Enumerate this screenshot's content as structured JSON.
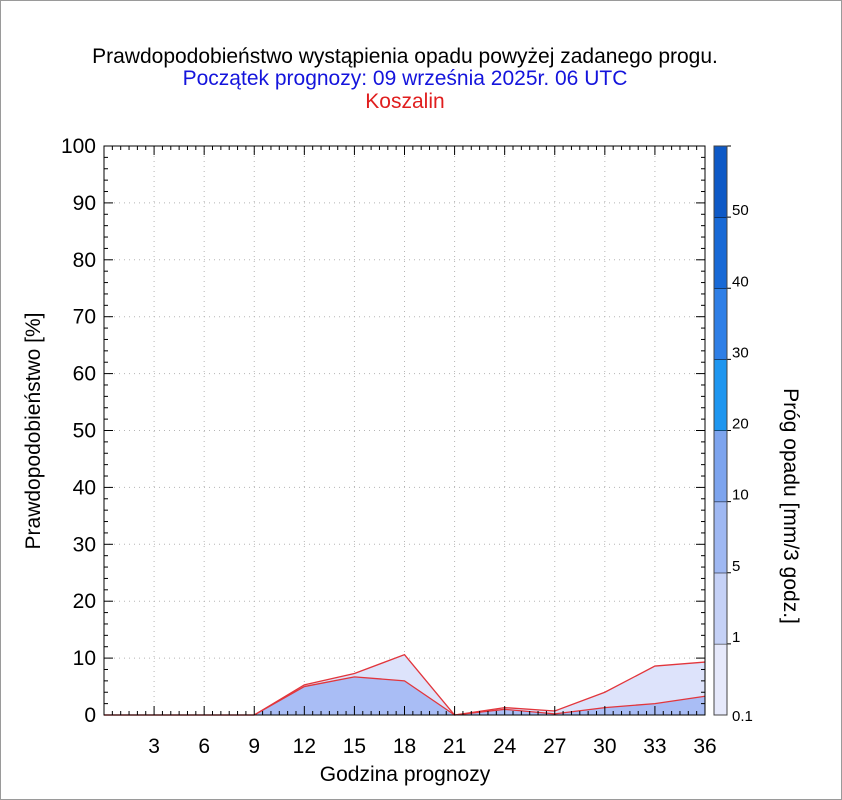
{
  "chart_data": {
    "type": "area",
    "title": "Prawdopodobieństwo wystąpienia opadu powyżej zadanego progu.",
    "subtitle": "Początek prognozy: 09 września 2025r. 06 UTC",
    "location": "Koszalin",
    "xlabel": "Godzina prognozy",
    "ylabel": "Prawdopodobieństwo [%]",
    "xlim": [
      0,
      36
    ],
    "ylim": [
      0,
      100
    ],
    "x": [
      0,
      3,
      6,
      9,
      12,
      15,
      18,
      21,
      24,
      27,
      30,
      33,
      36
    ],
    "x_ticks": [
      "3",
      "6",
      "9",
      "12",
      "15",
      "18",
      "21",
      "24",
      "27",
      "30",
      "33",
      "36"
    ],
    "y_ticks": [
      "0",
      "10",
      "20",
      "30",
      "40",
      "50",
      "60",
      "70",
      "80",
      "90",
      "100"
    ],
    "grid": true,
    "series": [
      {
        "threshold": "0.1",
        "values": [
          0,
          0,
          0,
          0,
          5.3,
          7.3,
          10.6,
          0,
          1.3,
          0.7,
          4.0,
          8.6,
          9.3
        ],
        "color": "#dde3fb"
      },
      {
        "threshold": "1",
        "values": [
          0,
          0,
          0,
          0,
          5.0,
          6.7,
          6.0,
          0,
          1.0,
          0.2,
          1.3,
          2.0,
          3.3
        ],
        "color": "#a9bdf5"
      }
    ],
    "line_color": "#e2363c",
    "colorbar": {
      "label": "Próg opadu [mm/3 godz.]",
      "ticks": [
        "0.1",
        "1",
        "5",
        "10",
        "20",
        "30",
        "40",
        "50"
      ],
      "colors": [
        "#e6e9fb",
        "#c5d1f6",
        "#9fb8f2",
        "#7da4ee",
        "#1e96f0",
        "#2f7fe6",
        "#1869d6",
        "#0e59c6",
        "#0746b1"
      ]
    },
    "title_colors": {
      "title": "#000000",
      "subtitle": "#1414dc",
      "location": "#e01e1e"
    }
  }
}
